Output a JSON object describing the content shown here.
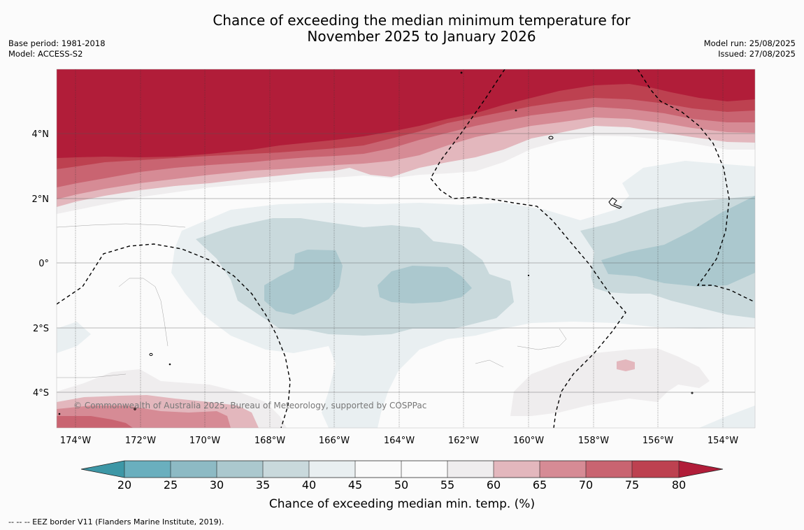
{
  "title": {
    "line1": "Chance of exceeding the median minimum temperature for",
    "line2": "November 2025 to January 2026"
  },
  "meta_left": {
    "base_period": "Base period: 1981-2018",
    "model": "Model: ACCESS-S2"
  },
  "meta_right": {
    "model_run": "Model run: 25/08/2025",
    "issued": "Issued: 27/08/2025"
  },
  "map": {
    "copyright": "© Commonwealth of Australia 2025, Bureau of Meteorology, supported by COSPPac",
    "lat_labels": [
      "4°N",
      "2°N",
      "0°",
      "2°S",
      "4°S"
    ],
    "lon_labels": [
      "174°W",
      "172°W",
      "170°W",
      "168°W",
      "166°W",
      "164°W",
      "162°W",
      "160°W",
      "158°W",
      "156°W",
      "154°W"
    ]
  },
  "colorbar": {
    "label": "Chance of exceeding median min. temp. (%)",
    "ticks": [
      "20",
      "25",
      "30",
      "35",
      "40",
      "45",
      "50",
      "55",
      "60",
      "65",
      "70",
      "75",
      "80"
    ],
    "colors": {
      "below_20": "#3d97a6",
      "20_25": "#6aafbe",
      "25_30": "#8dbac4",
      "30_35": "#abc8ce",
      "35_40": "#c9d9dc",
      "40_45": "#e9eff1",
      "45_50": "#fafafa",
      "50_55": "#fbfbfb",
      "55_60": "#efedee",
      "60_65": "#e3b7bd",
      "65_70": "#d68b95",
      "70_75": "#c96471",
      "75_80": "#bd4150",
      "above_80": "#b11d39"
    }
  },
  "footer": "--  --  -- EEZ border V11 (Flanders Marine Institute, 2019)."
}
